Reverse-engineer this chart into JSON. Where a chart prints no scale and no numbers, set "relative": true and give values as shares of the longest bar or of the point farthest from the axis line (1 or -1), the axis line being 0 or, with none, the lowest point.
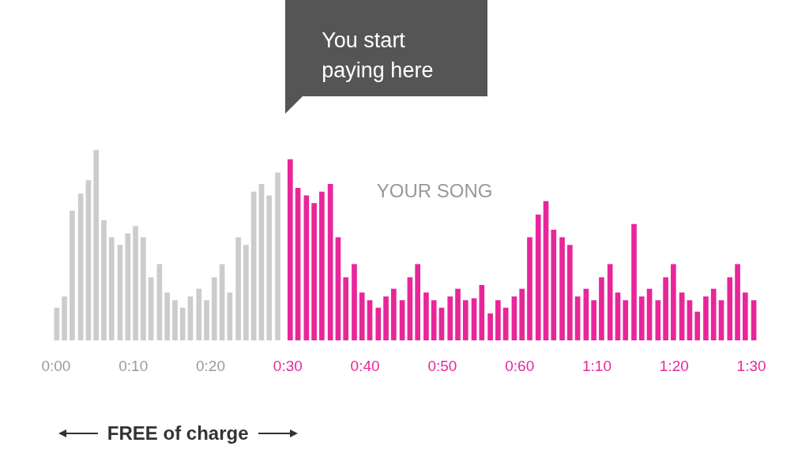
{
  "chart_data": {
    "type": "bar",
    "relative": true,
    "annotations": [
      "You start paying here",
      "YOUR SONG",
      "FREE of charge"
    ],
    "xlim": [
      0,
      90
    ],
    "xticks": [
      {
        "value": 0,
        "label": "0:00"
      },
      {
        "value": 10,
        "label": "0:10"
      },
      {
        "value": 20,
        "label": "0:20"
      },
      {
        "value": 30,
        "label": "0:30"
      },
      {
        "value": 40,
        "label": "0:40"
      },
      {
        "value": 50,
        "label": "0:50"
      },
      {
        "value": 60,
        "label": "0:60"
      },
      {
        "value": 70,
        "label": "1:10"
      },
      {
        "value": 80,
        "label": "1:20"
      },
      {
        "value": 90,
        "label": "1:30"
      }
    ],
    "tick_labels": "x",
    "grid": false,
    "legend": false,
    "series": [
      {
        "color": "#cccccc",
        "x": [
          0.4,
          1.4,
          2.4,
          3.5,
          4.5,
          5.5,
          6.5,
          7.5,
          8.6,
          9.6,
          10.6,
          11.6,
          12.6,
          13.7,
          14.7,
          15.7,
          16.7,
          17.7,
          18.8,
          19.8,
          20.8,
          21.8,
          22.8,
          23.9,
          24.9,
          25.9,
          26.9,
          27.9,
          29.0
        ],
        "values": [
          0.17,
          0.23,
          0.68,
          0.77,
          0.84,
          1,
          0.63,
          0.54,
          0.5,
          0.56,
          0.6,
          0.54,
          0.33,
          0.4,
          0.25,
          0.21,
          0.17,
          0.23,
          0.27,
          0.21,
          0.33,
          0.4,
          0.25,
          0.54,
          0.5,
          0.78,
          0.82,
          0.76,
          0.88
        ]
      },
      {
        "color": "#e8269a",
        "x": [
          30.0,
          31.0,
          32.1,
          33.1,
          34.1,
          35.2,
          36.2,
          37.2,
          38.3,
          39.3,
          40.3,
          41.4,
          42.4,
          43.4,
          44.5,
          45.5,
          46.5,
          47.6,
          48.6,
          49.6,
          50.7,
          51.7,
          52.7,
          53.8,
          54.8,
          55.9,
          56.9,
          57.9,
          59.0,
          60.0,
          61.0,
          62.1,
          63.1,
          64.1,
          65.2,
          66.2,
          67.2,
          68.3,
          69.3,
          70.3,
          71.4,
          72.4,
          73.4,
          74.5,
          75.5,
          76.5,
          77.6,
          78.6,
          79.6,
          80.7,
          81.7,
          82.7,
          83.8,
          84.8,
          85.8,
          86.9,
          87.9,
          88.9,
          90.0
        ],
        "values": [
          0.95,
          0.8,
          0.76,
          0.72,
          0.78,
          0.82,
          0.54,
          0.33,
          0.4,
          0.25,
          0.21,
          0.17,
          0.23,
          0.27,
          0.21,
          0.33,
          0.4,
          0.25,
          0.21,
          0.17,
          0.23,
          0.27,
          0.21,
          0.22,
          0.29,
          0.14,
          0.21,
          0.17,
          0.23,
          0.27,
          0.54,
          0.66,
          0.73,
          0.58,
          0.54,
          0.5,
          0.23,
          0.27,
          0.21,
          0.33,
          0.4,
          0.25,
          0.21,
          0.61,
          0.23,
          0.27,
          0.21,
          0.33,
          0.4,
          0.25,
          0.21,
          0.15,
          0.23,
          0.27,
          0.21,
          0.33,
          0.4,
          0.25,
          0.21
        ]
      }
    ]
  }
}
